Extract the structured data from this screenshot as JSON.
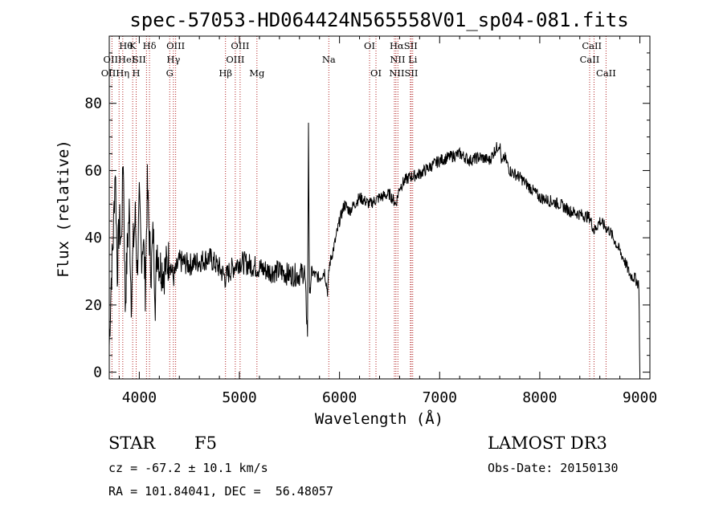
{
  "chart_data": {
    "type": "line",
    "title": "spec-57053-HD064424N565558V01_sp04-081.fits",
    "xlabel": "Wavelength (Å)",
    "ylabel": "Flux (relative)",
    "xlim": [
      3700,
      9100
    ],
    "ylim": [
      -2,
      100
    ],
    "xticks": [
      4000,
      5000,
      6000,
      7000,
      8000,
      9000
    ],
    "yticks": [
      0,
      20,
      40,
      60,
      80
    ],
    "series": [
      {
        "name": "flux",
        "x": [
          3700,
          3720,
          3740,
          3760,
          3780,
          3800,
          3820,
          3840,
          3860,
          3880,
          3900,
          3920,
          3940,
          3960,
          3980,
          4000,
          4020,
          4040,
          4060,
          4080,
          4100,
          4120,
          4140,
          4160,
          4180,
          4200,
          4250,
          4300,
          4340,
          4400,
          4500,
          4600,
          4700,
          4800,
          4861,
          4900,
          5000,
          5100,
          5200,
          5300,
          5400,
          5500,
          5600,
          5650,
          5680,
          5690,
          5700,
          5720,
          5750,
          5800,
          5850,
          5880,
          5900,
          5950,
          6000,
          6050,
          6100,
          6200,
          6300,
          6400,
          6500,
          6563,
          6600,
          6650,
          6700,
          6800,
          6900,
          7000,
          7100,
          7200,
          7300,
          7400,
          7500,
          7550,
          7600,
          7620,
          7650,
          7700,
          7800,
          7900,
          8000,
          8100,
          8200,
          8300,
          8400,
          8500,
          8542,
          8600,
          8662,
          8700,
          8800,
          8850,
          8900,
          8950,
          8990,
          9000
        ],
        "values": [
          8,
          28,
          40,
          62,
          30,
          45,
          38,
          65,
          20,
          36,
          48,
          22,
          38,
          46,
          30,
          50,
          35,
          40,
          25,
          55,
          40,
          30,
          42,
          22,
          38,
          32,
          30,
          34,
          28,
          33,
          32,
          33,
          34,
          31,
          28,
          30,
          33,
          32,
          31,
          30,
          30,
          29,
          29,
          30,
          12,
          75,
          22,
          30,
          29,
          28,
          30,
          24,
          32,
          38,
          45,
          50,
          48,
          52,
          50,
          52,
          53,
          50,
          55,
          57,
          58,
          59,
          61,
          63,
          64,
          65,
          63,
          64,
          63,
          66,
          68,
          62,
          64,
          60,
          58,
          55,
          52,
          51,
          50,
          48,
          47,
          46,
          42,
          45,
          43,
          42,
          36,
          33,
          29,
          28,
          26,
          0
        ]
      }
    ],
    "lines": [
      {
        "name": "OII",
        "wavelength": 3727
      },
      {
        "name": "Hθ",
        "wavelength": 3798
      },
      {
        "name": "Hη",
        "wavelength": 3835
      },
      {
        "name": "K",
        "wavelength": 3934
      },
      {
        "name": "H",
        "wavelength": 3969
      },
      {
        "name": "SII",
        "wavelength": 4072
      },
      {
        "name": "Hδ",
        "wavelength": 4102
      },
      {
        "name": "G",
        "wavelength": 4304
      },
      {
        "name": "Hγ",
        "wavelength": 4341
      },
      {
        "name": "OIII",
        "wavelength": 4363
      },
      {
        "name": "Hβ",
        "wavelength": 4861
      },
      {
        "name": "OIII",
        "wavelength": 4959
      },
      {
        "name": "OIII",
        "wavelength": 5007
      },
      {
        "name": "Mg",
        "wavelength": 5175
      },
      {
        "name": "Na",
        "wavelength": 5893
      },
      {
        "name": "OI",
        "wavelength": 6300
      },
      {
        "name": "OI",
        "wavelength": 6364
      },
      {
        "name": "NII",
        "wavelength": 6548
      },
      {
        "name": "Hα",
        "wavelength": 6563
      },
      {
        "name": "NII",
        "wavelength": 6583
      },
      {
        "name": "Li",
        "wavelength": 6708
      },
      {
        "name": "SII",
        "wavelength": 6716
      },
      {
        "name": "SII",
        "wavelength": 6731
      },
      {
        "name": "CaII",
        "wavelength": 8498
      },
      {
        "name": "CaII",
        "wavelength": 8542
      },
      {
        "name": "CaII",
        "wavelength": 8662
      }
    ],
    "line_labels": [
      {
        "text": "Hθ",
        "wavelength": 3798,
        "row": 0,
        "anchor": "start"
      },
      {
        "text": "K",
        "wavelength": 3934,
        "row": 0,
        "anchor": "middle"
      },
      {
        "text": "Hδ",
        "wavelength": 4102,
        "row": 0,
        "anchor": "middle"
      },
      {
        "text": "OIII",
        "wavelength": 4363,
        "row": 0,
        "anchor": "middle"
      },
      {
        "text": "OIII",
        "wavelength": 5007,
        "row": 0,
        "anchor": "middle"
      },
      {
        "text": "OI",
        "wavelength": 6300,
        "row": 0,
        "anchor": "middle"
      },
      {
        "text": "HαSII",
        "wavelength": 6640,
        "row": 0,
        "anchor": "middle"
      },
      {
        "text": "CaII",
        "wavelength": 8520,
        "row": 0,
        "anchor": "middle"
      },
      {
        "text": "OIIHeI",
        "wavelength": 3800,
        "row": 1,
        "anchor": "middle"
      },
      {
        "text": "SII",
        "wavelength": 4000,
        "row": 1,
        "anchor": "middle"
      },
      {
        "text": "Hγ",
        "wavelength": 4341,
        "row": 1,
        "anchor": "middle"
      },
      {
        "text": "OIII",
        "wavelength": 4959,
        "row": 1,
        "anchor": "middle"
      },
      {
        "text": "Na",
        "wavelength": 5893,
        "row": 1,
        "anchor": "middle"
      },
      {
        "text": "NII Li",
        "wavelength": 6640,
        "row": 1,
        "anchor": "middle"
      },
      {
        "text": "CaII",
        "wavelength": 8498,
        "row": 1,
        "anchor": "middle"
      },
      {
        "text": "OIIHη",
        "wavelength": 3760,
        "row": 2,
        "anchor": "middle"
      },
      {
        "text": "H",
        "wavelength": 3969,
        "row": 2,
        "anchor": "middle"
      },
      {
        "text": "G",
        "wavelength": 4304,
        "row": 2,
        "anchor": "middle"
      },
      {
        "text": "Hβ",
        "wavelength": 4861,
        "row": 2,
        "anchor": "middle"
      },
      {
        "text": "Mg",
        "wavelength": 5175,
        "row": 2,
        "anchor": "middle"
      },
      {
        "text": "OI",
        "wavelength": 6364,
        "row": 2,
        "anchor": "middle"
      },
      {
        "text": "NIISII",
        "wavelength": 6640,
        "row": 2,
        "anchor": "middle"
      },
      {
        "text": "CaII",
        "wavelength": 8662,
        "row": 2,
        "anchor": "middle"
      }
    ],
    "colors": {
      "spectrum": "#000000",
      "lines": "#b22222",
      "axes": "#000000"
    }
  },
  "info": {
    "object_class": "STAR",
    "subclass": "F5",
    "survey": "LAMOST DR3",
    "redshift": "cz = -67.2 ± 10.1 km/s",
    "obs_date": "Obs-Date: 20150130",
    "coords": "RA = 101.84041, DEC =  56.48057"
  }
}
